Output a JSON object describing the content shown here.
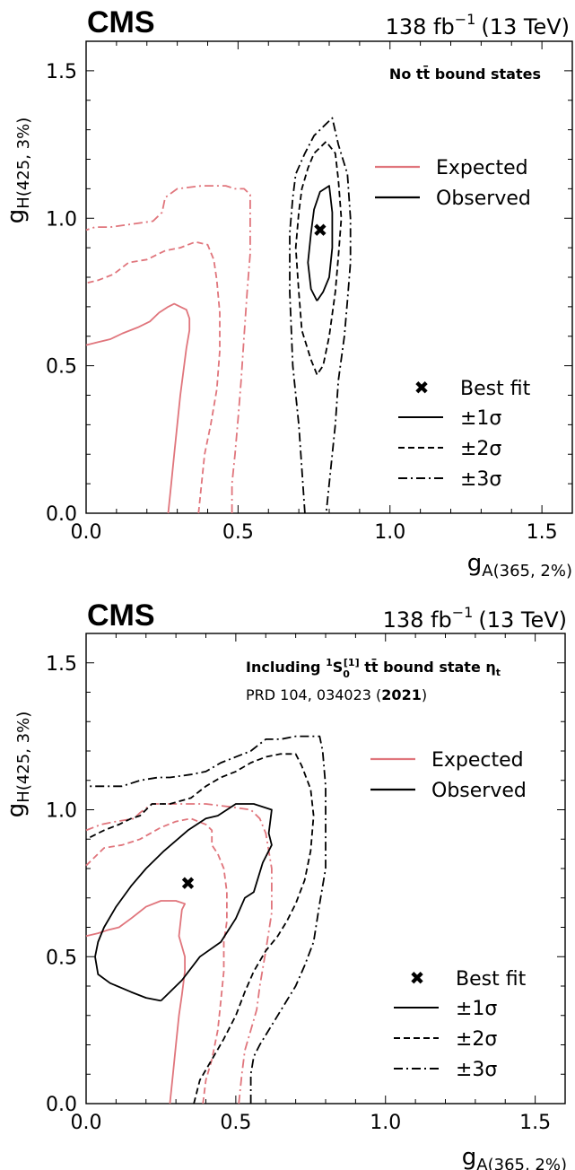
{
  "chart_data": [
    {
      "type": "line",
      "experiment": "CMS",
      "lumi": "138 fb",
      "lumi_exp": "−1",
      "energy": "(13 TeV)",
      "scenario": "No t",
      "scenario_mid": "t̄",
      "scenario_end": " bound states",
      "xlabel": "g",
      "xlabel_sub": "A(365, 2%)",
      "ylabel": "g",
      "ylabel_sub": "H(425, 3%)",
      "xlim": [
        0,
        1.6
      ],
      "ylim": [
        0,
        1.6
      ],
      "xticks": [
        0.0,
        0.5,
        1.0,
        1.5
      ],
      "yticks": [
        0.0,
        0.5,
        1.0,
        1.5
      ],
      "xtick_labels": [
        "0.0",
        "0.5",
        "1.0",
        "1.5"
      ],
      "ytick_labels": [
        "0.0",
        "0.5",
        "1.0",
        "1.5"
      ],
      "legend_lines": {
        "expected": "Expected",
        "observed": "Observed"
      },
      "legend_markers": {
        "best_fit": "Best fit",
        "one_sigma": "±1σ",
        "two_sigma": "±2σ",
        "three_sigma": "±3σ"
      },
      "colors": {
        "expected": "#e0757c",
        "observed": "#000000"
      },
      "best_fit": [
        0.77,
        0.96
      ],
      "series": [
        {
          "name": "Expected",
          "level": 1,
          "x": [
            0.27,
            0.28,
            0.29,
            0.3,
            0.31,
            0.32,
            0.33,
            0.34,
            0.34,
            0.33,
            0.31,
            0.29,
            0.27,
            0.24,
            0.21,
            0.17,
            0.12,
            0.08,
            0.04,
            0.0
          ],
          "y": [
            0.0,
            0.1,
            0.2,
            0.3,
            0.4,
            0.48,
            0.56,
            0.62,
            0.66,
            0.69,
            0.7,
            0.71,
            0.7,
            0.68,
            0.65,
            0.63,
            0.61,
            0.59,
            0.58,
            0.57
          ]
        },
        {
          "name": "Expected",
          "level": 2,
          "x": [
            0.37,
            0.38,
            0.39,
            0.41,
            0.43,
            0.44,
            0.44,
            0.43,
            0.42,
            0.4,
            0.36,
            0.31,
            0.26,
            0.2,
            0.14,
            0.09,
            0.04,
            0.0
          ],
          "y": [
            0.0,
            0.1,
            0.2,
            0.3,
            0.42,
            0.55,
            0.68,
            0.79,
            0.86,
            0.91,
            0.92,
            0.9,
            0.89,
            0.86,
            0.85,
            0.81,
            0.79,
            0.78
          ]
        },
        {
          "name": "Expected",
          "level": 3,
          "x": [
            0.48,
            0.48,
            0.49,
            0.5,
            0.51,
            0.52,
            0.53,
            0.54,
            0.54,
            0.52,
            0.49,
            0.46,
            0.38,
            0.3,
            0.26,
            0.25,
            0.22,
            0.15,
            0.08,
            0.03,
            0.0
          ],
          "y": [
            0.0,
            0.1,
            0.2,
            0.32,
            0.45,
            0.6,
            0.75,
            0.88,
            1.08,
            1.1,
            1.1,
            1.11,
            1.11,
            1.1,
            1.07,
            1.02,
            0.99,
            0.98,
            0.97,
            0.97,
            0.96
          ]
        },
        {
          "name": "Observed",
          "level": 1,
          "x": [
            0.76,
            0.74,
            0.73,
            0.74,
            0.75,
            0.77,
            0.8,
            0.81,
            0.81,
            0.8,
            0.78,
            0.76
          ],
          "y": [
            0.72,
            0.76,
            0.85,
            0.95,
            1.03,
            1.09,
            1.11,
            1.02,
            0.9,
            0.8,
            0.75,
            0.72
          ]
        },
        {
          "name": "Observed",
          "level": 2,
          "x": [
            0.76,
            0.74,
            0.71,
            0.7,
            0.69,
            0.7,
            0.71,
            0.73,
            0.75,
            0.77,
            0.79,
            0.82,
            0.83,
            0.84,
            0.83,
            0.82,
            0.8,
            0.78,
            0.76
          ],
          "y": [
            0.47,
            0.52,
            0.62,
            0.75,
            0.9,
            1.02,
            1.1,
            1.17,
            1.22,
            1.24,
            1.26,
            1.22,
            1.13,
            1.0,
            0.87,
            0.75,
            0.6,
            0.5,
            0.47
          ]
        },
        {
          "name": "Observed",
          "level": 3,
          "x": [
            0.72,
            0.71,
            0.7,
            0.68,
            0.67,
            0.67,
            0.68,
            0.69,
            0.72,
            0.75,
            0.78,
            0.81,
            0.83,
            0.86,
            0.87,
            0.87,
            0.86,
            0.85,
            0.83,
            0.82,
            0.81,
            0.8,
            0.79
          ],
          "y": [
            0.0,
            0.15,
            0.3,
            0.5,
            0.75,
            0.95,
            1.07,
            1.15,
            1.22,
            1.28,
            1.31,
            1.34,
            1.25,
            1.15,
            1.0,
            0.85,
            0.72,
            0.6,
            0.45,
            0.3,
            0.2,
            0.1,
            0.0
          ]
        }
      ]
    },
    {
      "type": "line",
      "experiment": "CMS",
      "lumi": "138 fb",
      "lumi_exp": "−1",
      "energy": "(13 TeV)",
      "scenario_pre": "Including ",
      "scenario_sup": "1",
      "scenario_s": "S",
      "scenario_sub": "0",
      "scenario_sup2": "[1]",
      "scenario_t": " t",
      "scenario_tbar": "t̄",
      "scenario_post": " bound state η",
      "scenario_eta_sub": "t",
      "reference_pre": "PRD 104, 034023 (",
      "reference_year": "2021",
      "reference_post": ")",
      "xlabel": "g",
      "xlabel_sub": "A(365, 2%)",
      "ylabel": "g",
      "ylabel_sub": "H(425, 3%)",
      "xlim": [
        0,
        1.6
      ],
      "ylim": [
        0,
        1.6
      ],
      "xticks": [
        0.0,
        0.5,
        1.0,
        1.5
      ],
      "yticks": [
        0.0,
        0.5,
        1.0,
        1.5
      ],
      "xtick_labels": [
        "0.0",
        "0.5",
        "1.0",
        "1.5"
      ],
      "ytick_labels": [
        "0.0",
        "0.5",
        "1.0",
        "1.5"
      ],
      "legend_lines": {
        "expected": "Expected",
        "observed": "Observed"
      },
      "legend_markers": {
        "best_fit": "Best fit",
        "one_sigma": "±1σ",
        "two_sigma": "±2σ",
        "three_sigma": "±3σ"
      },
      "colors": {
        "expected": "#e0757c",
        "observed": "#000000"
      },
      "best_fit": [
        0.34,
        0.75
      ],
      "series": [
        {
          "name": "Expected",
          "level": 1,
          "x": [
            0.28,
            0.29,
            0.3,
            0.31,
            0.32,
            0.33,
            0.33,
            0.31,
            0.32,
            0.33,
            0.3,
            0.25,
            0.2,
            0.15,
            0.11,
            0.07,
            0.04,
            0.0
          ],
          "y": [
            0.0,
            0.1,
            0.2,
            0.3,
            0.37,
            0.45,
            0.5,
            0.57,
            0.66,
            0.68,
            0.69,
            0.69,
            0.67,
            0.63,
            0.6,
            0.59,
            0.58,
            0.57
          ]
        },
        {
          "name": "Expected",
          "level": 2,
          "x": [
            0.39,
            0.4,
            0.42,
            0.44,
            0.45,
            0.46,
            0.46,
            0.47,
            0.47,
            0.46,
            0.44,
            0.42,
            0.42,
            0.4,
            0.35,
            0.3,
            0.25,
            0.18,
            0.12,
            0.06,
            0.0
          ],
          "y": [
            0.0,
            0.08,
            0.15,
            0.25,
            0.35,
            0.45,
            0.55,
            0.62,
            0.72,
            0.8,
            0.85,
            0.88,
            0.93,
            0.95,
            0.97,
            0.96,
            0.94,
            0.9,
            0.88,
            0.87,
            0.81
          ]
        },
        {
          "name": "Expected",
          "level": 3,
          "x": [
            0.51,
            0.52,
            0.53,
            0.55,
            0.57,
            0.58,
            0.6,
            0.62,
            0.62,
            0.6,
            0.58,
            0.55,
            0.48,
            0.4,
            0.3,
            0.22,
            0.18,
            0.16,
            0.1,
            0.05,
            0.0
          ],
          "y": [
            0.0,
            0.1,
            0.18,
            0.25,
            0.32,
            0.4,
            0.52,
            0.65,
            0.8,
            0.92,
            0.97,
            1.0,
            1.01,
            1.02,
            1.02,
            1.02,
            0.99,
            0.97,
            0.96,
            0.95,
            0.93
          ]
        },
        {
          "name": "Observed",
          "level": 1,
          "x": [
            0.25,
            0.28,
            0.32,
            0.38,
            0.45,
            0.5,
            0.53,
            0.56,
            0.59,
            0.62,
            0.61,
            0.62,
            0.56,
            0.5,
            0.44,
            0.4,
            0.34,
            0.26,
            0.2,
            0.15,
            0.1,
            0.06,
            0.04,
            0.03,
            0.04,
            0.08,
            0.15,
            0.2,
            0.25
          ],
          "y": [
            0.35,
            0.38,
            0.42,
            0.5,
            0.55,
            0.63,
            0.7,
            0.72,
            0.82,
            0.88,
            0.92,
            1.0,
            1.02,
            1.02,
            0.98,
            0.97,
            0.93,
            0.86,
            0.8,
            0.74,
            0.67,
            0.6,
            0.55,
            0.5,
            0.44,
            0.41,
            0.38,
            0.36,
            0.35
          ]
        },
        {
          "name": "Observed",
          "level": 2,
          "x": [
            0.36,
            0.38,
            0.42,
            0.46,
            0.5,
            0.53,
            0.56,
            0.6,
            0.64,
            0.67,
            0.7,
            0.73,
            0.75,
            0.76,
            0.75,
            0.72,
            0.7,
            0.65,
            0.6,
            0.55,
            0.5,
            0.45,
            0.4,
            0.35,
            0.28,
            0.22,
            0.18,
            0.15,
            0.11,
            0.06,
            0.0
          ],
          "y": [
            0.0,
            0.08,
            0.15,
            0.22,
            0.3,
            0.38,
            0.45,
            0.52,
            0.57,
            0.62,
            0.68,
            0.76,
            0.86,
            0.98,
            1.07,
            1.15,
            1.19,
            1.19,
            1.18,
            1.16,
            1.13,
            1.11,
            1.08,
            1.04,
            1.02,
            1.02,
            0.98,
            0.97,
            0.95,
            0.93,
            0.9
          ]
        },
        {
          "name": "Observed",
          "level": 3,
          "x": [
            0.55,
            0.55,
            0.56,
            0.58,
            0.61,
            0.64,
            0.67,
            0.7,
            0.73,
            0.76,
            0.78,
            0.8,
            0.8,
            0.8,
            0.79,
            0.78,
            0.75,
            0.7,
            0.65,
            0.6,
            0.55,
            0.5,
            0.45,
            0.4,
            0.35,
            0.28,
            0.24,
            0.18,
            0.12,
            0.06,
            0.0
          ],
          "y": [
            0.0,
            0.1,
            0.16,
            0.2,
            0.25,
            0.3,
            0.35,
            0.4,
            0.47,
            0.55,
            0.68,
            0.8,
            0.95,
            1.08,
            1.2,
            1.25,
            1.25,
            1.25,
            1.24,
            1.24,
            1.2,
            1.18,
            1.16,
            1.13,
            1.12,
            1.11,
            1.11,
            1.1,
            1.08,
            1.08,
            1.08
          ]
        }
      ]
    }
  ]
}
